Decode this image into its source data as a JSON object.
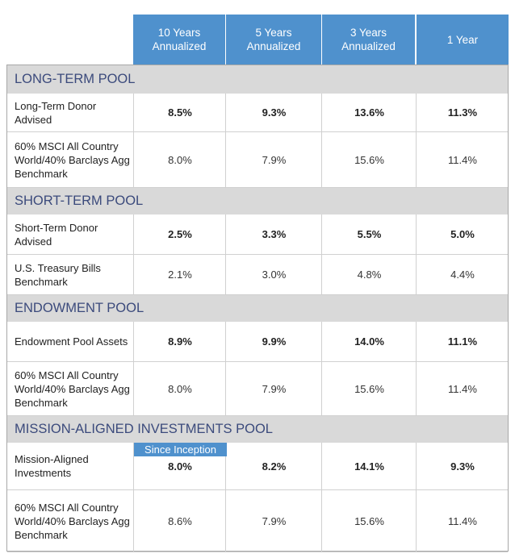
{
  "headers": [
    "10 Years\nAnnualized",
    "5 Years\nAnnualized",
    "3 Years\nAnnualized",
    "1 Year"
  ],
  "sections": [
    {
      "title": "LONG-TERM POOL",
      "rows": [
        {
          "label": "Long-Term Donor Advised",
          "values": [
            "8.5%",
            "9.3%",
            "13.6%",
            "11.3%"
          ],
          "bold": true
        },
        {
          "label": "60% MSCI All Country World/40% Barclays Agg Benchmark",
          "values": [
            "8.0%",
            "7.9%",
            "15.6%",
            "11.4%"
          ],
          "bold": false
        }
      ]
    },
    {
      "title": "SHORT-TERM POOL",
      "rows": [
        {
          "label": "Short-Term Donor Advised",
          "values": [
            "2.5%",
            "3.3%",
            "5.5%",
            "5.0%"
          ],
          "bold": true
        },
        {
          "label": "U.S. Treasury Bills Benchmark",
          "values": [
            "2.1%",
            "3.0%",
            "4.8%",
            "4.4%"
          ],
          "bold": false
        }
      ]
    },
    {
      "title": "ENDOWMENT POOL",
      "rows": [
        {
          "label": "Endowment Pool Assets",
          "values": [
            "8.9%",
            "9.9%",
            "14.0%",
            "11.1%"
          ],
          "bold": true
        },
        {
          "label": "60% MSCI All Country World/40% Barclays Agg Benchmark",
          "values": [
            "8.0%",
            "7.9%",
            "15.6%",
            "11.4%"
          ],
          "bold": false
        }
      ]
    },
    {
      "title": "MISSION-ALIGNED INVESTMENTS POOL",
      "badge": "Since Inception",
      "rows": [
        {
          "label": "Mission-Aligned Investments",
          "values": [
            "8.0%",
            "8.2%",
            "14.1%",
            "9.3%"
          ],
          "bold": true
        },
        {
          "label": "60% MSCI All Country World/40% Barclays Agg Benchmark",
          "values": [
            "8.6%",
            "7.9%",
            "15.6%",
            "11.4%"
          ],
          "bold": false
        }
      ]
    }
  ]
}
